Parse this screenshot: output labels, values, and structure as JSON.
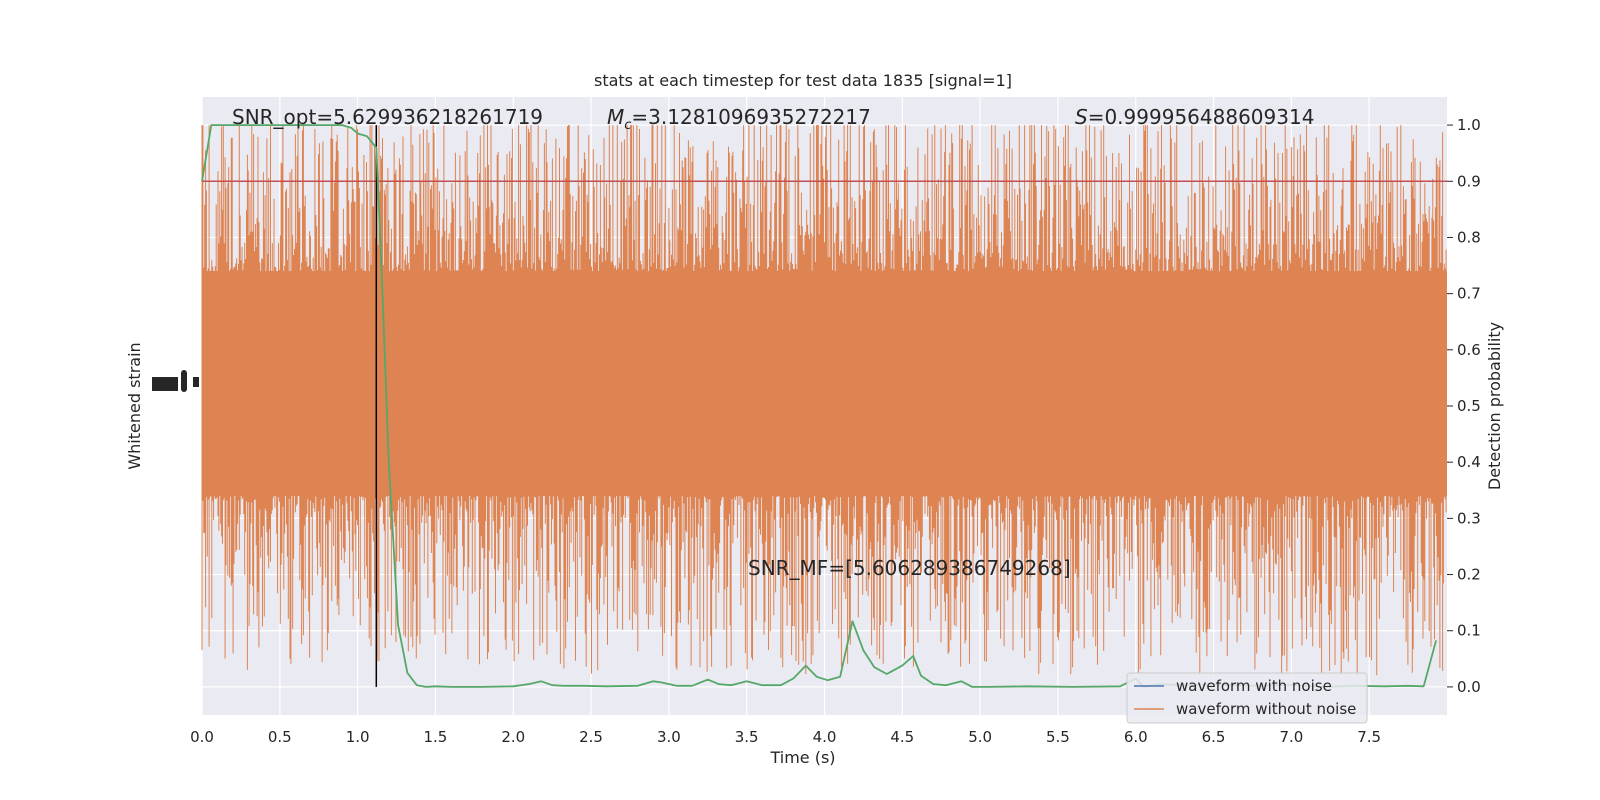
{
  "chart_data": {
    "type": "line",
    "title": "stats at each timestep for test data 1835 [signal=1]",
    "xlabel": "Time (s)",
    "ylabel_left": "Whitened strain",
    "ylabel_right": "Detection probability",
    "xlim": [
      0.0,
      8.0
    ],
    "ylim_right": [
      -0.05,
      1.05
    ],
    "x_ticks": [
      "0.0",
      "0.5",
      "1.0",
      "1.5",
      "2.0",
      "2.5",
      "3.0",
      "3.5",
      "4.0",
      "4.5",
      "5.0",
      "5.5",
      "6.0",
      "6.5",
      "7.0",
      "7.5"
    ],
    "y_ticks_right": [
      "0.0",
      "0.1",
      "0.2",
      "0.3",
      "0.4",
      "0.5",
      "0.6",
      "0.7",
      "0.8",
      "0.9",
      "1.0"
    ],
    "grid": true,
    "legend_position": "lower-right",
    "legend": [
      {
        "name": "waveform with noise",
        "color": "#4c72b0"
      },
      {
        "name": "waveform without noise",
        "color": "#dd8452"
      }
    ],
    "annotations": {
      "snr_opt": "SNR_opt=5.629936218261719",
      "mc_symbol": "M",
      "mc_sub": "c",
      "mc_value": "=3.1281096935272217",
      "s_symbol": "S",
      "s_value": "=0.999956488609314",
      "snr_mf": "SNR_MF=[5.606289386749268]"
    },
    "threshold": {
      "y": 0.9,
      "color": "#c44e52"
    },
    "marker_time": 1.12,
    "strain_envelope": {
      "center": 0.54,
      "core_half_width": 0.2,
      "max_spike": 1.0,
      "min_spike": 0.0,
      "color": "#dd8452"
    },
    "series": [
      {
        "name": "detection probability",
        "color": "#55a868",
        "x": [
          0.0,
          0.06,
          0.15,
          0.3,
          0.5,
          0.7,
          0.9,
          0.96,
          1.0,
          1.06,
          1.12,
          1.16,
          1.2,
          1.26,
          1.32,
          1.38,
          1.44,
          1.5,
          1.6,
          1.8,
          2.0,
          2.1,
          2.18,
          2.25,
          2.32,
          2.45,
          2.6,
          2.8,
          2.9,
          2.95,
          3.05,
          3.15,
          3.25,
          3.32,
          3.4,
          3.5,
          3.6,
          3.72,
          3.8,
          3.88,
          3.95,
          4.02,
          4.1,
          4.18,
          4.25,
          4.32,
          4.4,
          4.5,
          4.57,
          4.62,
          4.7,
          4.78,
          4.88,
          4.95,
          5.05,
          5.3,
          5.6,
          5.9,
          6.0,
          6.05,
          6.15,
          6.3,
          6.5,
          6.8,
          7.0,
          7.2,
          7.4,
          7.6,
          7.75,
          7.85,
          7.93
        ],
        "values": [
          0.9,
          1.0,
          1.0,
          1.0,
          1.0,
          1.0,
          1.0,
          0.995,
          0.985,
          0.98,
          0.96,
          0.7,
          0.4,
          0.11,
          0.025,
          0.003,
          0.0,
          0.001,
          0.0,
          0.0,
          0.001,
          0.005,
          0.01,
          0.003,
          0.002,
          0.002,
          0.001,
          0.002,
          0.01,
          0.008,
          0.002,
          0.002,
          0.013,
          0.005,
          0.003,
          0.01,
          0.003,
          0.003,
          0.015,
          0.038,
          0.018,
          0.012,
          0.018,
          0.117,
          0.065,
          0.035,
          0.023,
          0.038,
          0.055,
          0.02,
          0.005,
          0.003,
          0.01,
          0.0,
          0.0,
          0.001,
          0.0,
          0.001,
          0.015,
          0.0,
          0.005,
          0.003,
          0.004,
          0.002,
          0.004,
          0.0,
          0.002,
          0.001,
          0.002,
          0.001,
          0.083
        ]
      }
    ]
  }
}
